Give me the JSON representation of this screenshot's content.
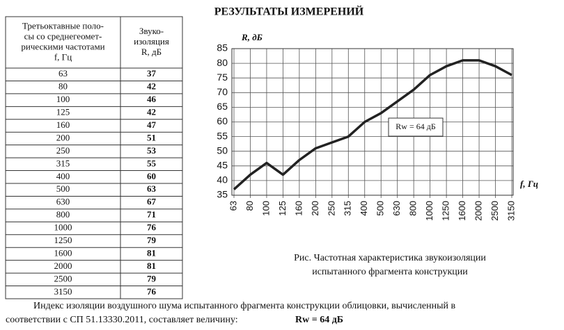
{
  "header": {
    "title": "РЕЗУЛЬТАТЫ ИЗМЕРЕНИЙ"
  },
  "table": {
    "columns": [
      [
        "Третьоктавные поло-",
        "сы со среднегеомет-",
        "рическими частотами",
        "f, Гц"
      ],
      [
        "Звуко-",
        "изоляция",
        "R, дБ"
      ]
    ],
    "rows": [
      [
        "63",
        "37"
      ],
      [
        "80",
        "42"
      ],
      [
        "100",
        "46"
      ],
      [
        "125",
        "42"
      ],
      [
        "160",
        "47"
      ],
      [
        "200",
        "51"
      ],
      [
        "250",
        "53"
      ],
      [
        "315",
        "55"
      ],
      [
        "400",
        "60"
      ],
      [
        "500",
        "63"
      ],
      [
        "630",
        "67"
      ],
      [
        "800",
        "71"
      ],
      [
        "1000",
        "76"
      ],
      [
        "1250",
        "79"
      ],
      [
        "1600",
        "81"
      ],
      [
        "2000",
        "81"
      ],
      [
        "2500",
        "79"
      ],
      [
        "3150",
        "76"
      ]
    ]
  },
  "chart_data": {
    "type": "line",
    "ylabel": "R, дБ",
    "xlabel": "f, Гц",
    "categories": [
      "63",
      "80",
      "100",
      "125",
      "160",
      "200",
      "250",
      "315",
      "400",
      "500",
      "630",
      "800",
      "1000",
      "1250",
      "1600",
      "2000",
      "2500",
      "3150"
    ],
    "values": [
      37,
      42,
      46,
      42,
      47,
      51,
      53,
      55,
      60,
      63,
      67,
      71,
      76,
      79,
      81,
      81,
      79,
      76
    ],
    "color": "#222222",
    "ylim": [
      35,
      85
    ],
    "yticks": [
      35,
      40,
      45,
      50,
      55,
      60,
      65,
      70,
      75,
      80,
      85
    ],
    "grid": true,
    "annotation": "Rw = 64 дБ"
  },
  "caption": [
    "Рис. Частотная характеристика звукоизоляции",
    "испытанного фрагмента конструкции"
  ],
  "footer": {
    "line1": "Индекс изоляции воздушного шума испытанного фрагмента конструкции облицовки, вычисленный в",
    "line2": "соответствии с СП 51.13330.2011, составляет величину:",
    "result": "Rw = 64 дБ"
  }
}
